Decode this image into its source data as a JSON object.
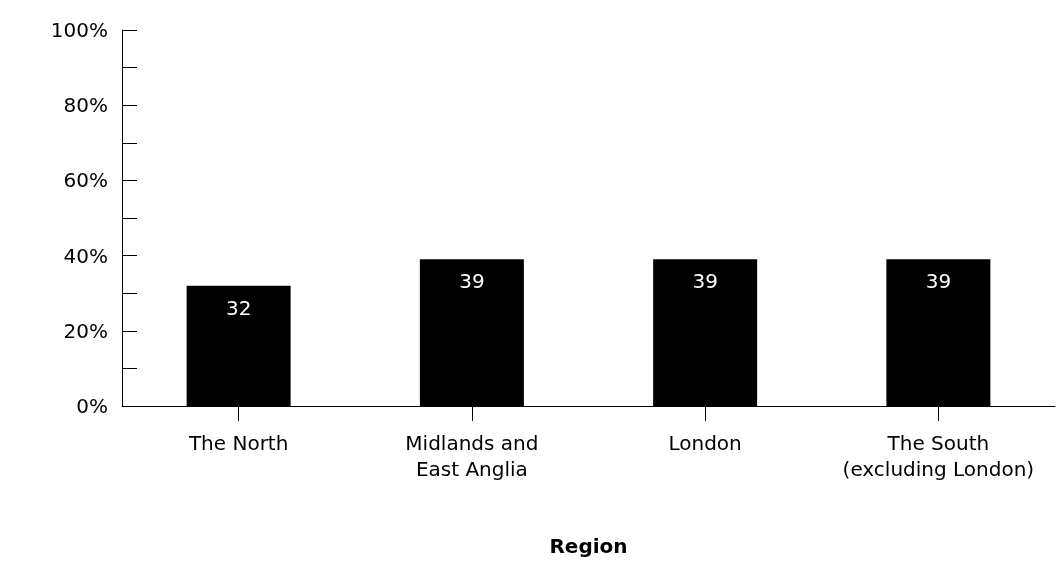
{
  "chart_data": {
    "type": "bar",
    "xlabel": "Region",
    "categories": [
      "The North",
      "Midlands and\nEast Anglia",
      "London",
      "The South\n(excluding London)"
    ],
    "values": [
      32,
      39,
      39,
      39
    ],
    "color": "#000000",
    "data_labels": true,
    "ylim": [
      0,
      100
    ],
    "yticks": [
      {
        "value": 0,
        "label": "0%"
      },
      {
        "value": 10,
        "label": null
      },
      {
        "value": 20,
        "label": "20%"
      },
      {
        "value": 30,
        "label": null
      },
      {
        "value": 40,
        "label": "40%"
      },
      {
        "value": 50,
        "label": null
      },
      {
        "value": 60,
        "label": "60%"
      },
      {
        "value": 70,
        "label": null
      },
      {
        "value": 80,
        "label": "80%"
      },
      {
        "value": 90,
        "label": null
      },
      {
        "value": 100,
        "label": "100%"
      }
    ],
    "grid": false
  }
}
